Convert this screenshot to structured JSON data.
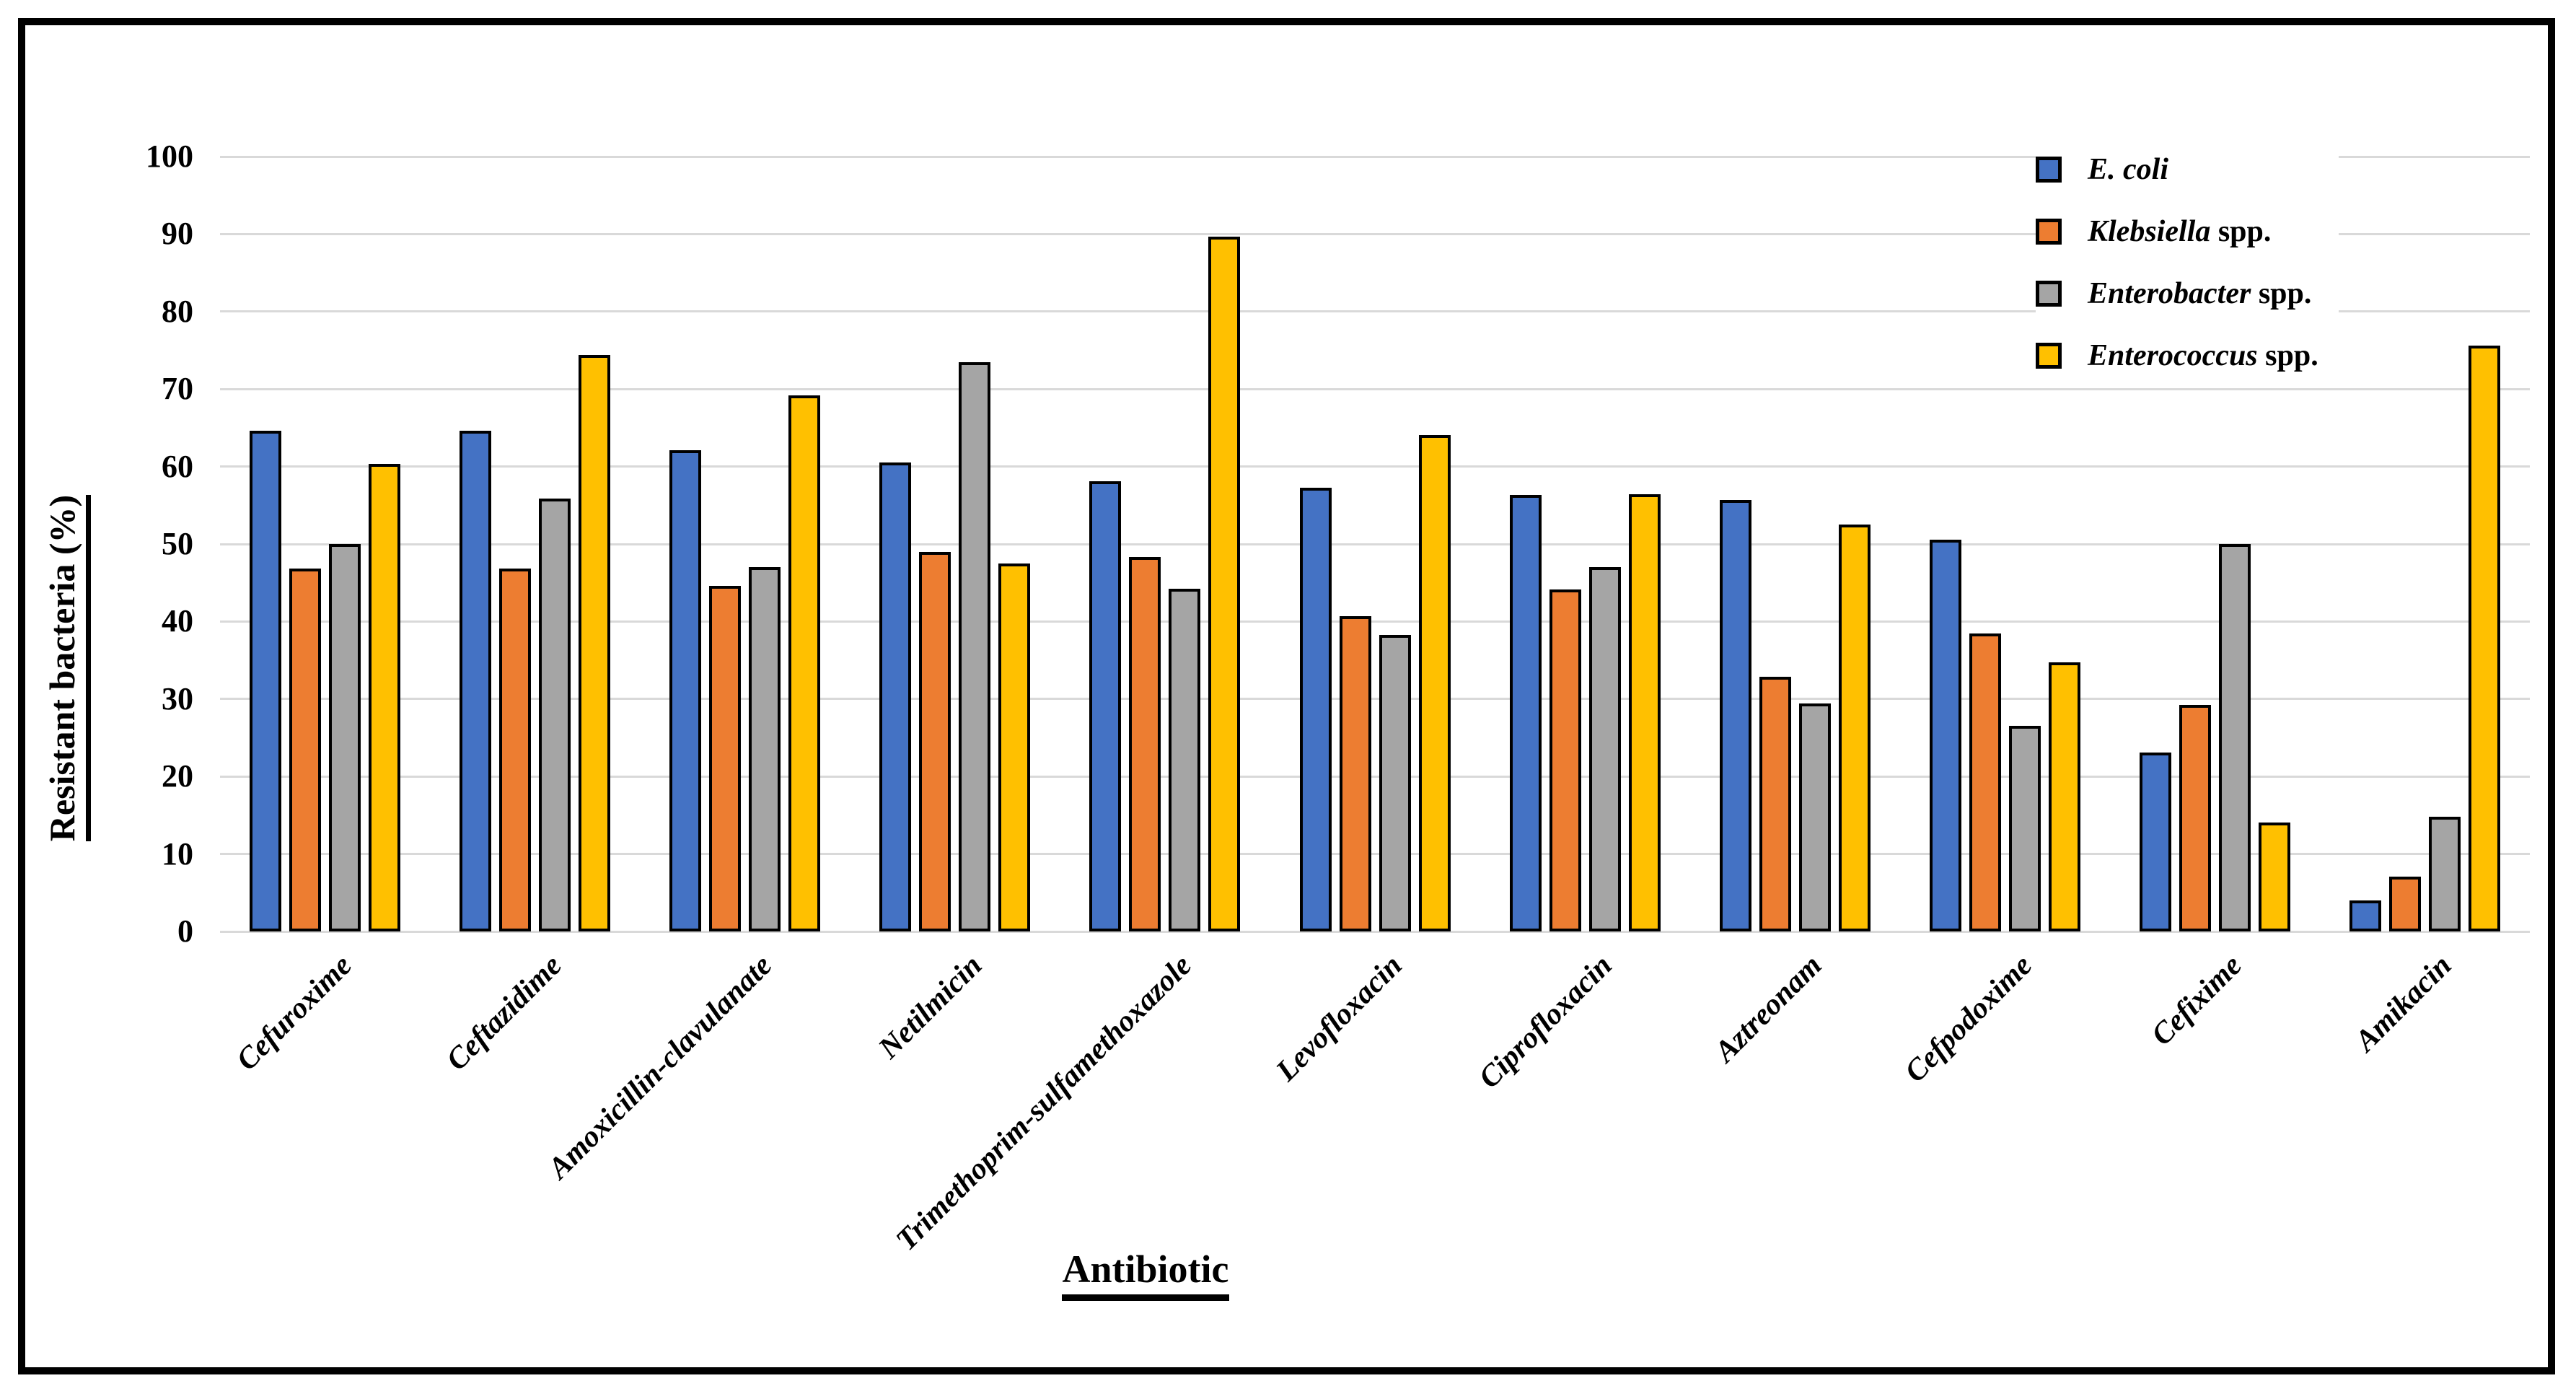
{
  "figure": {
    "background": "#ffffff",
    "border_color": "#000000",
    "gridline_color": "#d9d9d9",
    "bar_border_color": "#000000"
  },
  "chart_data": {
    "type": "bar",
    "title": "",
    "xlabel": "Antibiotic",
    "ylabel": "Resistant bacteria (%)",
    "ylim": [
      0,
      100
    ],
    "ytick_step": 10,
    "ytick_labels": [
      "0",
      "10",
      "20",
      "30",
      "40",
      "50",
      "60",
      "70",
      "80",
      "90",
      "100"
    ],
    "grid": true,
    "legend_position": "top-right",
    "categories": [
      "Cefuroxime",
      "Ceftazidime",
      "Amoxicillin-clavulanate",
      "Netilmicin",
      "Trimethoprim-sulfamethoxazole",
      "Levofloxacin",
      "Ciprofloxacin",
      "Aztreonam",
      "Cefpodoxime",
      "Cefixime",
      "Amikacin"
    ],
    "series": [
      {
        "name": "E. coli",
        "legend_italic": "E. coli",
        "legend_roman": "",
        "color": "#4472C4",
        "values": [
          64.6,
          64.6,
          62.1,
          60.5,
          58.1,
          57.3,
          56.3,
          55.7,
          50.6,
          23.1,
          4.0
        ]
      },
      {
        "name": "Klebsiella spp.",
        "legend_italic": "Klebsiella",
        "legend_roman": " spp.",
        "color": "#ED7D31",
        "values": [
          46.8,
          46.8,
          44.6,
          49.0,
          48.3,
          40.7,
          44.1,
          32.9,
          38.5,
          29.2,
          7.1
        ]
      },
      {
        "name": "Enterobacter spp.",
        "legend_italic": "Enterobacter",
        "legend_roman": " spp.",
        "color": "#A5A5A5",
        "values": [
          50.0,
          55.9,
          47.0,
          73.5,
          44.2,
          38.3,
          47.0,
          29.4,
          26.5,
          50.0,
          14.8
        ]
      },
      {
        "name": "Enterococcus spp.",
        "legend_italic": "Enterococcus",
        "legend_roman": " spp.",
        "color": "#FFC000",
        "values": [
          60.3,
          74.4,
          69.2,
          47.5,
          89.7,
          64.1,
          56.4,
          52.5,
          34.7,
          14.1,
          75.6
        ]
      }
    ]
  }
}
